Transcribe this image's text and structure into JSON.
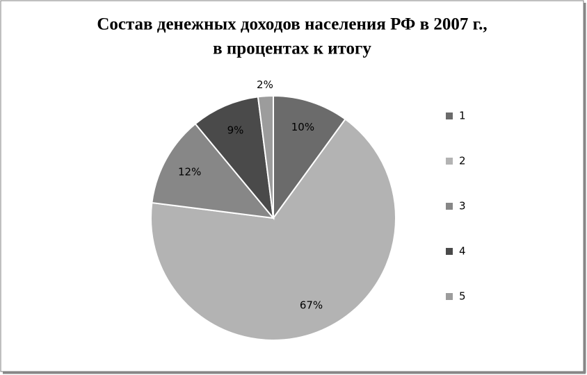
{
  "chart_data": {
    "type": "pie",
    "title": [
      "Состав денежных доходов населения РФ в 2007 г.,",
      "в процентах к итогу"
    ],
    "categories": [
      "1",
      "2",
      "3",
      "4",
      "5"
    ],
    "values": [
      10,
      67,
      12,
      9,
      2
    ],
    "value_labels": [
      "10%",
      "67%",
      "12%",
      "9%",
      "2%"
    ],
    "colors": [
      "#6b6b6b",
      "#b3b3b3",
      "#878787",
      "#4a4a4a",
      "#9c9c9c"
    ],
    "legend": "right"
  }
}
